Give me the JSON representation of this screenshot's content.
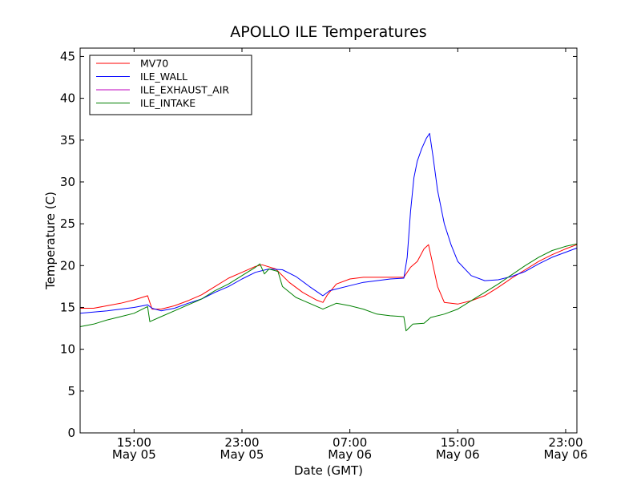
{
  "chart_data": {
    "type": "line",
    "title": "APOLLO ILE Temperatures",
    "xlabel": "Date (GMT)",
    "ylabel": "Temperature (C)",
    "xlim": [
      "2014-05-05T11:00",
      "2014-05-06T23:50"
    ],
    "ylim": [
      0,
      46
    ],
    "grid": false,
    "legend_position": "top-left",
    "x_ticks": [
      {
        "x": "2014-05-05T15:00",
        "time": "15:00",
        "date": "May 05"
      },
      {
        "x": "2014-05-05T23:00",
        "time": "23:00",
        "date": "May 05"
      },
      {
        "x": "2014-05-06T07:00",
        "time": "07:00",
        "date": "May 06"
      },
      {
        "x": "2014-05-06T15:00",
        "time": "15:00",
        "date": "May 06"
      },
      {
        "x": "2014-05-06T23:00",
        "time": "23:00",
        "date": "May 06"
      }
    ],
    "y_ticks": [
      0,
      5,
      10,
      15,
      20,
      25,
      30,
      35,
      40,
      45
    ],
    "series": [
      {
        "name": "MV70",
        "color": "#ff0000",
        "points": [
          [
            "2014-05-05T11:00",
            14.9
          ],
          [
            "2014-05-05T12:00",
            14.9
          ],
          [
            "2014-05-05T13:00",
            15.2
          ],
          [
            "2014-05-05T14:00",
            15.5
          ],
          [
            "2014-05-05T15:00",
            15.9
          ],
          [
            "2014-05-05T16:00",
            16.4
          ],
          [
            "2014-05-05T16:20",
            14.8
          ],
          [
            "2014-05-05T17:00",
            14.8
          ],
          [
            "2014-05-05T18:00",
            15.2
          ],
          [
            "2014-05-05T19:00",
            15.8
          ],
          [
            "2014-05-05T20:00",
            16.5
          ],
          [
            "2014-05-05T21:00",
            17.5
          ],
          [
            "2014-05-05T22:00",
            18.5
          ],
          [
            "2014-05-05T23:00",
            19.2
          ],
          [
            "2014-05-06T00:00",
            19.9
          ],
          [
            "2014-05-06T00:30",
            20.1
          ],
          [
            "2014-05-06T01:30",
            19.6
          ],
          [
            "2014-05-06T02:30",
            18.0
          ],
          [
            "2014-05-06T03:30",
            16.8
          ],
          [
            "2014-05-06T04:30",
            15.9
          ],
          [
            "2014-05-06T05:00",
            15.6
          ],
          [
            "2014-05-06T05:20",
            16.5
          ],
          [
            "2014-05-06T06:00",
            17.8
          ],
          [
            "2014-05-06T07:00",
            18.4
          ],
          [
            "2014-05-06T08:00",
            18.6
          ],
          [
            "2014-05-06T09:00",
            18.6
          ],
          [
            "2014-05-06T10:00",
            18.6
          ],
          [
            "2014-05-06T11:00",
            18.6
          ],
          [
            "2014-05-06T11:30",
            19.8
          ],
          [
            "2014-05-06T12:00",
            20.5
          ],
          [
            "2014-05-06T12:30",
            22.0
          ],
          [
            "2014-05-06T12:50",
            22.5
          ],
          [
            "2014-05-06T13:10",
            20.0
          ],
          [
            "2014-05-06T13:30",
            17.5
          ],
          [
            "2014-05-06T14:00",
            15.6
          ],
          [
            "2014-05-06T15:00",
            15.4
          ],
          [
            "2014-05-06T16:00",
            15.8
          ],
          [
            "2014-05-06T17:00",
            16.4
          ],
          [
            "2014-05-06T18:00",
            17.4
          ],
          [
            "2014-05-06T19:00",
            18.5
          ],
          [
            "2014-05-06T20:00",
            19.5
          ],
          [
            "2014-05-06T21:00",
            20.5
          ],
          [
            "2014-05-06T22:00",
            21.3
          ],
          [
            "2014-05-06T23:00",
            22.0
          ],
          [
            "2014-05-06T23:50",
            22.5
          ]
        ]
      },
      {
        "name": "ILE_WALL",
        "color": "#0000ff",
        "points": [
          [
            "2014-05-05T11:00",
            14.3
          ],
          [
            "2014-05-05T13:00",
            14.6
          ],
          [
            "2014-05-05T15:00",
            15.0
          ],
          [
            "2014-05-05T16:00",
            15.3
          ],
          [
            "2014-05-05T16:20",
            14.9
          ],
          [
            "2014-05-05T17:00",
            14.6
          ],
          [
            "2014-05-05T18:00",
            14.9
          ],
          [
            "2014-05-05T19:00",
            15.5
          ],
          [
            "2014-05-05T20:00",
            16.0
          ],
          [
            "2014-05-05T21:00",
            16.8
          ],
          [
            "2014-05-05T22:00",
            17.5
          ],
          [
            "2014-05-05T23:00",
            18.4
          ],
          [
            "2014-05-06T00:00",
            19.2
          ],
          [
            "2014-05-06T01:00",
            19.6
          ],
          [
            "2014-05-06T02:00",
            19.5
          ],
          [
            "2014-05-06T03:00",
            18.7
          ],
          [
            "2014-05-06T04:00",
            17.5
          ],
          [
            "2014-05-06T05:00",
            16.4
          ],
          [
            "2014-05-06T05:30",
            17.0
          ],
          [
            "2014-05-06T06:00",
            17.2
          ],
          [
            "2014-05-06T07:00",
            17.6
          ],
          [
            "2014-05-06T08:00",
            18.0
          ],
          [
            "2014-05-06T09:00",
            18.2
          ],
          [
            "2014-05-06T10:00",
            18.4
          ],
          [
            "2014-05-06T11:00",
            18.5
          ],
          [
            "2014-05-06T11:15",
            21.0
          ],
          [
            "2014-05-06T11:30",
            26.5
          ],
          [
            "2014-05-06T11:45",
            30.5
          ],
          [
            "2014-05-06T12:00",
            32.5
          ],
          [
            "2014-05-06T12:20",
            34.0
          ],
          [
            "2014-05-06T12:40",
            35.2
          ],
          [
            "2014-05-06T12:55",
            35.8
          ],
          [
            "2014-05-06T13:10",
            33.0
          ],
          [
            "2014-05-06T13:30",
            29.0
          ],
          [
            "2014-05-06T14:00",
            25.0
          ],
          [
            "2014-05-06T14:30",
            22.5
          ],
          [
            "2014-05-06T15:00",
            20.5
          ],
          [
            "2014-05-06T16:00",
            18.8
          ],
          [
            "2014-05-06T17:00",
            18.2
          ],
          [
            "2014-05-06T18:00",
            18.3
          ],
          [
            "2014-05-06T19:00",
            18.7
          ],
          [
            "2014-05-06T20:00",
            19.3
          ],
          [
            "2014-05-06T21:00",
            20.2
          ],
          [
            "2014-05-06T22:00",
            21.0
          ],
          [
            "2014-05-06T23:00",
            21.6
          ],
          [
            "2014-05-06T23:50",
            22.1
          ]
        ]
      },
      {
        "name": "ILE_EXHAUST_AIR",
        "color": "#bf00bf",
        "points": []
      },
      {
        "name": "ILE_INTAKE",
        "color": "#008000",
        "points": [
          [
            "2014-05-05T11:00",
            12.7
          ],
          [
            "2014-05-05T12:00",
            13.0
          ],
          [
            "2014-05-05T13:00",
            13.5
          ],
          [
            "2014-05-05T14:00",
            13.9
          ],
          [
            "2014-05-05T15:00",
            14.3
          ],
          [
            "2014-05-05T16:00",
            15.1
          ],
          [
            "2014-05-05T16:10",
            13.3
          ],
          [
            "2014-05-05T17:00",
            13.9
          ],
          [
            "2014-05-05T18:00",
            14.6
          ],
          [
            "2014-05-05T19:00",
            15.3
          ],
          [
            "2014-05-05T20:00",
            16.0
          ],
          [
            "2014-05-05T21:00",
            17.0
          ],
          [
            "2014-05-05T22:00",
            17.8
          ],
          [
            "2014-05-05T23:00",
            18.8
          ],
          [
            "2014-05-06T00:00",
            19.8
          ],
          [
            "2014-05-06T00:20",
            20.2
          ],
          [
            "2014-05-06T00:40",
            19.0
          ],
          [
            "2014-05-06T01:00",
            19.6
          ],
          [
            "2014-05-06T01:40",
            19.3
          ],
          [
            "2014-05-06T02:00",
            17.5
          ],
          [
            "2014-05-06T03:00",
            16.2
          ],
          [
            "2014-05-06T04:00",
            15.5
          ],
          [
            "2014-05-06T05:00",
            14.8
          ],
          [
            "2014-05-06T06:00",
            15.5
          ],
          [
            "2014-05-06T07:00",
            15.2
          ],
          [
            "2014-05-06T08:00",
            14.8
          ],
          [
            "2014-05-06T09:00",
            14.2
          ],
          [
            "2014-05-06T10:00",
            14.0
          ],
          [
            "2014-05-06T11:00",
            13.9
          ],
          [
            "2014-05-06T11:10",
            12.2
          ],
          [
            "2014-05-06T11:40",
            13.0
          ],
          [
            "2014-05-06T12:30",
            13.1
          ],
          [
            "2014-05-06T13:00",
            13.8
          ],
          [
            "2014-05-06T14:00",
            14.2
          ],
          [
            "2014-05-06T15:00",
            14.8
          ],
          [
            "2014-05-06T16:00",
            15.8
          ],
          [
            "2014-05-06T17:00",
            16.8
          ],
          [
            "2014-05-06T18:00",
            17.8
          ],
          [
            "2014-05-06T19:00",
            18.9
          ],
          [
            "2014-05-06T20:00",
            20.0
          ],
          [
            "2014-05-06T21:00",
            21.0
          ],
          [
            "2014-05-06T22:00",
            21.8
          ],
          [
            "2014-05-06T23:00",
            22.3
          ],
          [
            "2014-05-06T23:50",
            22.6
          ]
        ]
      }
    ]
  }
}
